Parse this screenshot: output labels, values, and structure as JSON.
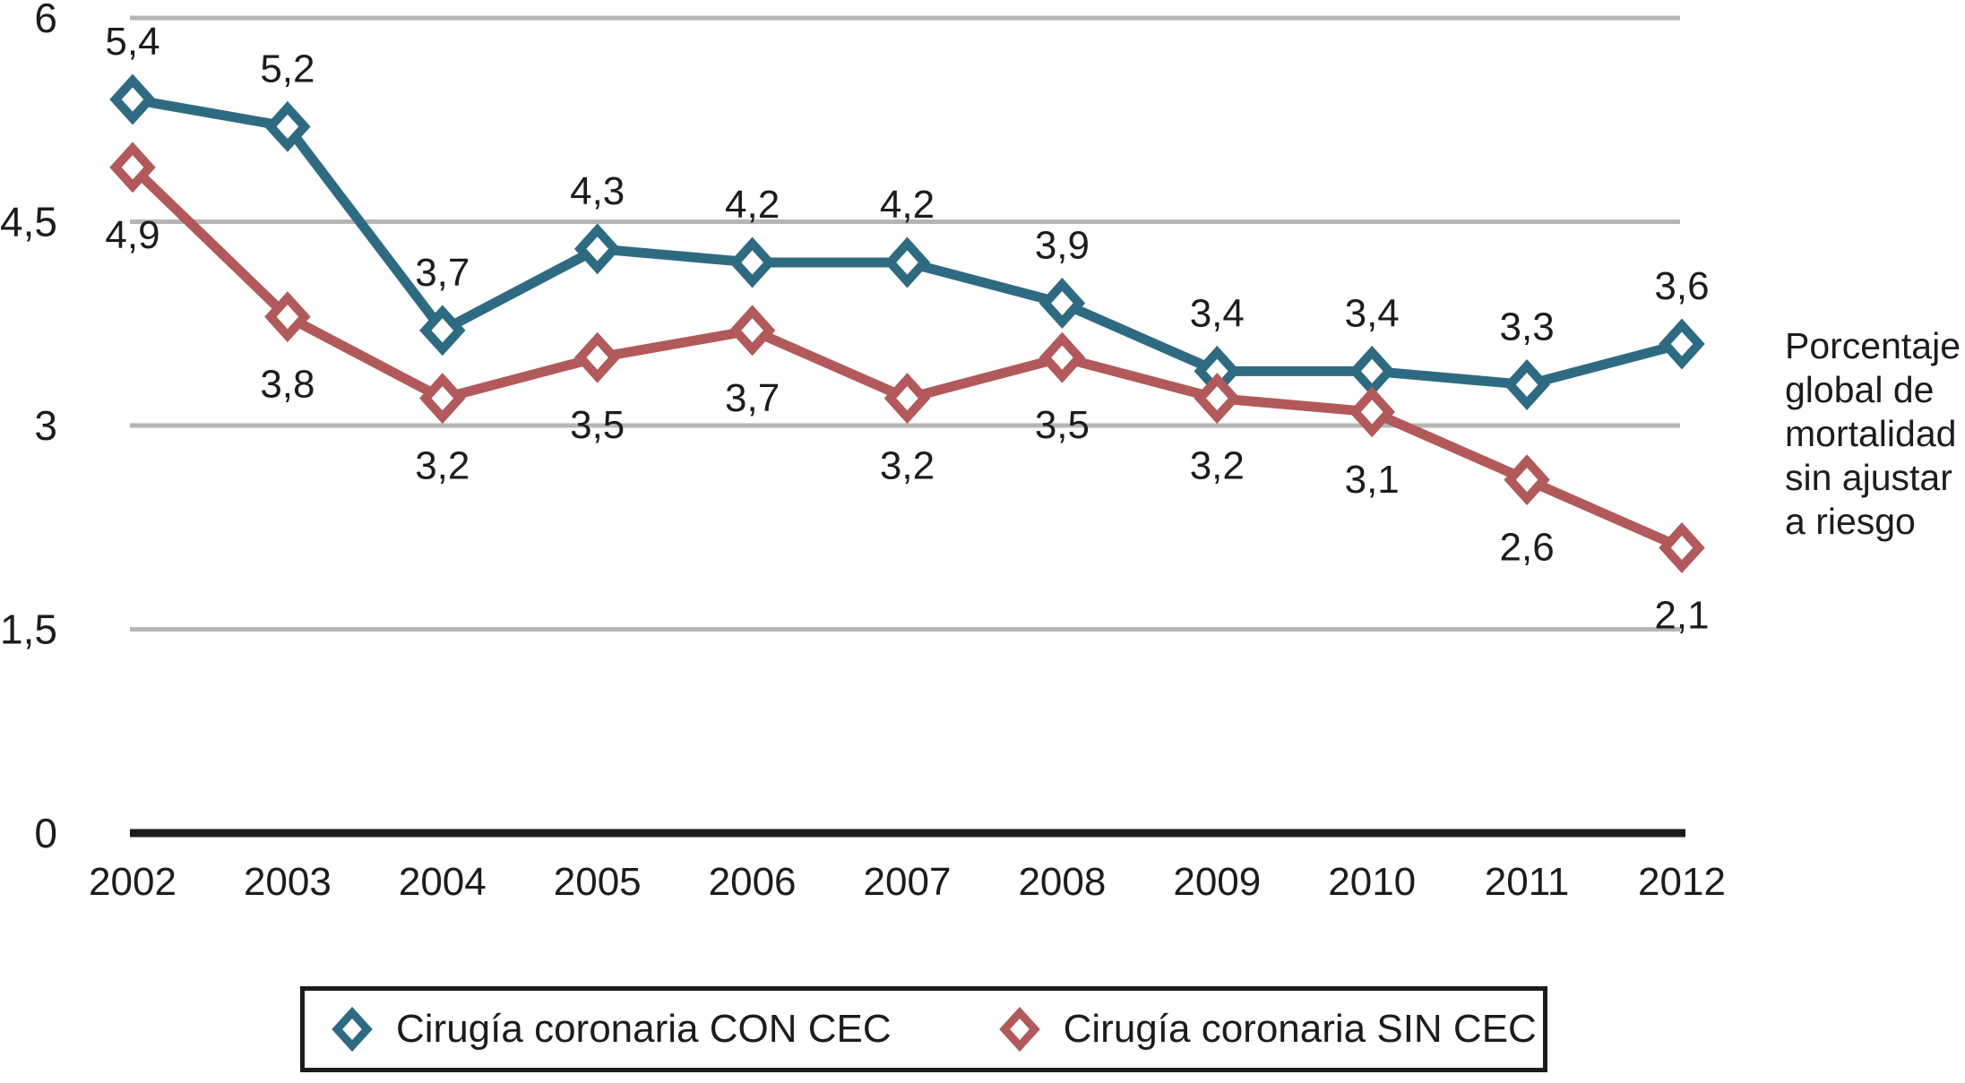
{
  "chart_data": {
    "type": "line",
    "title": "",
    "categories": [
      "2002",
      "2003",
      "2004",
      "2005",
      "2006",
      "2007",
      "2008",
      "2009",
      "2010",
      "2011",
      "2012"
    ],
    "series": [
      {
        "name": "Cirugía coronaria CON CEC",
        "color": "#2E6B82",
        "marker": "diamond",
        "label_position": "above",
        "values": [
          5.4,
          5.2,
          3.7,
          4.3,
          4.2,
          4.2,
          3.9,
          3.4,
          3.4,
          3.3,
          3.6
        ],
        "labels": [
          "5,4",
          "5,2",
          "3,7",
          "4,3",
          "4,2",
          "4,2",
          "3,9",
          "3,4",
          "3,4",
          "3,3",
          "3,6"
        ]
      },
      {
        "name": "Cirugía coronaria SIN CEC",
        "color": "#B2595B",
        "marker": "diamond",
        "label_position": "below",
        "values": [
          4.9,
          3.8,
          3.2,
          3.5,
          3.7,
          3.2,
          3.5,
          3.2,
          3.1,
          2.6,
          2.1
        ],
        "labels": [
          "4,9",
          "3,8",
          "3,2",
          "3,5",
          "3,7",
          "3,2",
          "3,5",
          "3,2",
          "3,1",
          "2,6",
          "2,1"
        ]
      }
    ],
    "y_axis": {
      "range": [
        0,
        6
      ],
      "ticks": [
        {
          "value": 6,
          "label": "6"
        },
        {
          "value": 4.5,
          "label": "4,5"
        },
        {
          "value": 3,
          "label": "3"
        },
        {
          "value": 1.5,
          "label": "1,5"
        },
        {
          "value": 0,
          "label": "0"
        }
      ],
      "gridline_values": [
        6,
        4.5,
        3,
        1.5
      ]
    },
    "x_axis": {
      "labels": [
        "2002",
        "2003",
        "2004",
        "2005",
        "2006",
        "2007",
        "2008",
        "2009",
        "2010",
        "2011",
        "2012"
      ]
    },
    "right_label": "Porcentaje global de mortalidad sin ajustar a riesgo",
    "right_label_lines": [
      "Porcentaje",
      "global de",
      "mortalidad",
      "sin ajustar",
      "a riesgo"
    ],
    "legend_position": "bottom",
    "grid": "horizontal",
    "colors": {
      "gridline": "#b5b5b5",
      "axis": "#1c1c1c",
      "text": "#1c1c1c",
      "background": "#ffffff"
    }
  }
}
